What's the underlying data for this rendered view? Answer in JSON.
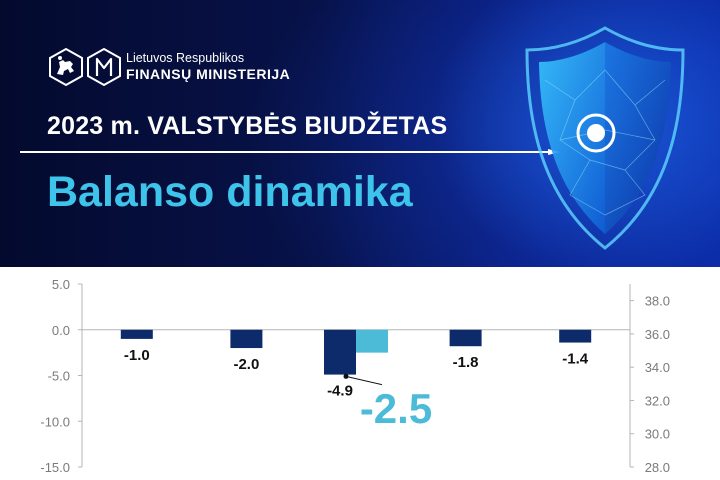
{
  "header": {
    "logo_line1": "Lietuvos Respublikos",
    "logo_line2": "FINANSŲ MINISTERIJA",
    "budget_title": "2023 m. VALSTYBĖS BIUDŽETAS",
    "page_title": "Balanso dinamika"
  },
  "colors": {
    "banner_bg": "#07124a",
    "title_accent": "#3ec4ea",
    "bar_dark": "#0d2b6b",
    "bar_light": "#4cbbd8",
    "highlight_label": "#4cbbd8"
  },
  "icons": {
    "logo_emblem": "vytis-emblem-icon",
    "logo_monogram": "m-monogram-icon",
    "hero": "shield-icon",
    "arrow": "arrow-right-icon"
  },
  "chart_data": {
    "type": "bar",
    "title": "",
    "left_axis": {
      "ticks": [
        "5.0",
        "0.0",
        "-5.0",
        "-10.0",
        "-15.0"
      ],
      "ylim": [
        -15,
        5
      ]
    },
    "right_axis": {
      "ticks": [
        "38.0",
        "36.0",
        "34.0",
        "32.0",
        "30.0",
        "28.0"
      ],
      "ylim": [
        28,
        39
      ]
    },
    "grid": false,
    "groups": 5,
    "series": [
      {
        "values": [
          -1.0,
          -2.0,
          -4.9,
          -1.8,
          -1.4
        ],
        "labels": [
          "-1.0",
          "-2.0",
          "-4.9",
          "-1.8",
          "-1.4"
        ],
        "color": "#0d2b6b"
      },
      {
        "values": [
          null,
          null,
          -2.5,
          null,
          null
        ],
        "labels": [
          null,
          null,
          "-2.5",
          null,
          null
        ],
        "color": "#4cbbd8"
      }
    ]
  }
}
